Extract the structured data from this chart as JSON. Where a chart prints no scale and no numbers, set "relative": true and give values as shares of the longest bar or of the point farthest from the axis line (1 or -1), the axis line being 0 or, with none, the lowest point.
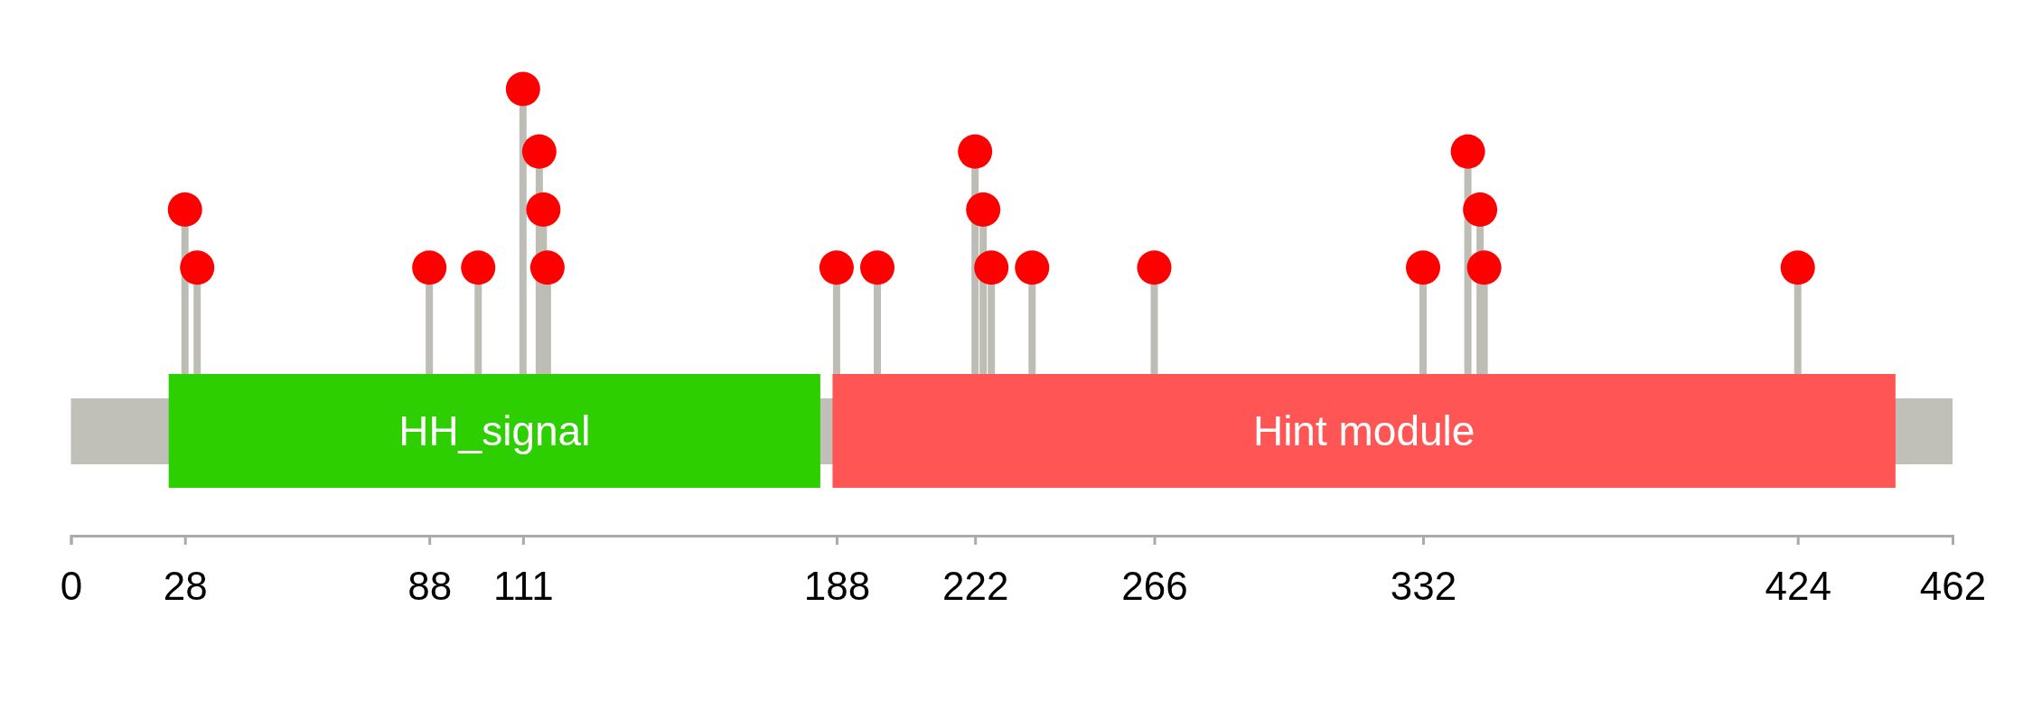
{
  "chart_data": {
    "type": "lollipop",
    "relative": true,
    "xlim": [
      0,
      462
    ],
    "xticks": [
      0,
      28,
      88,
      111,
      188,
      222,
      266,
      332,
      424,
      462
    ],
    "series": [
      {
        "color": "#ff0000",
        "x": [
          28,
          31,
          88,
          100,
          111,
          115,
          116,
          117,
          188,
          198,
          222,
          224,
          226,
          236,
          266,
          332,
          343,
          346,
          347,
          424
        ],
        "values": [
          0.73,
          0.6,
          0.6,
          0.6,
          1,
          0.86,
          0.73,
          0.6,
          0.6,
          0.6,
          0.86,
          0.73,
          0.6,
          0.6,
          0.6,
          0.6,
          0.86,
          0.73,
          0.6,
          0.6
        ]
      }
    ],
    "bands": [
      {
        "axis": "x",
        "from": 24,
        "to": 184,
        "label": "HH_signal",
        "color": "#2ecf00"
      },
      {
        "axis": "x",
        "from": 187,
        "to": 448,
        "label": "Hint module",
        "color": "#ff5555"
      }
    ],
    "marker": "circle"
  }
}
